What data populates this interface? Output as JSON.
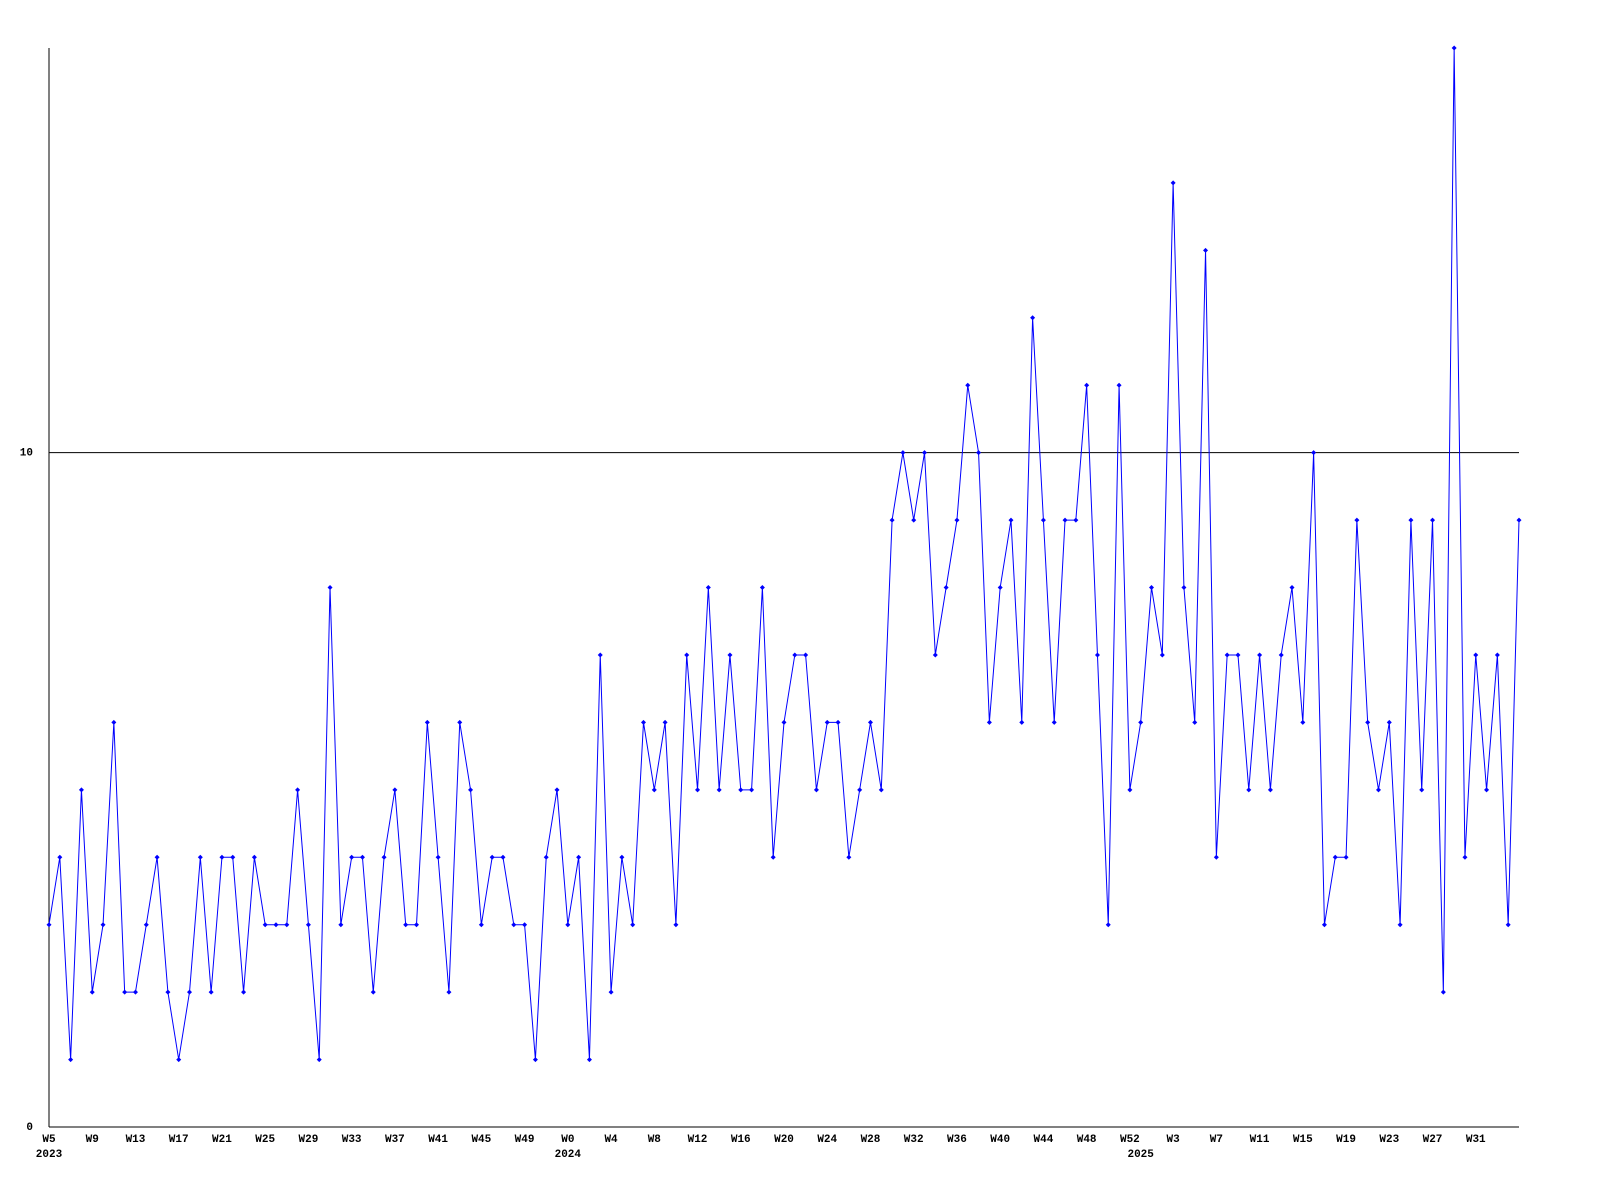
{
  "chart_data": {
    "type": "line",
    "color": "#0000ff",
    "axis_color": "#000000",
    "ylim": [
      0,
      16
    ],
    "yticks": [
      0,
      10
    ],
    "grid": true,
    "markers": true,
    "categories": [
      "W5",
      null,
      null,
      null,
      "W9",
      null,
      null,
      null,
      "W13",
      null,
      null,
      null,
      "W17",
      null,
      null,
      null,
      "W21",
      null,
      null,
      null,
      "W25",
      null,
      null,
      null,
      "W29",
      null,
      null,
      null,
      "W33",
      null,
      null,
      null,
      "W37",
      null,
      null,
      null,
      "W41",
      null,
      null,
      null,
      "W45",
      null,
      null,
      null,
      "W49",
      null,
      null,
      null,
      "W0",
      null,
      null,
      null,
      "W4",
      null,
      null,
      null,
      "W8",
      null,
      null,
      null,
      "W12",
      null,
      null,
      null,
      "W16",
      null,
      null,
      null,
      "W20",
      null,
      null,
      null,
      "W24",
      null,
      null,
      null,
      "W28",
      null,
      null,
      null,
      "W32",
      null,
      null,
      null,
      "W36",
      null,
      null,
      null,
      "W40",
      null,
      null,
      null,
      "W44",
      null,
      null,
      null,
      "W48",
      null,
      null,
      null,
      "W52",
      null,
      null,
      null,
      "W3",
      null,
      null,
      null,
      "W7",
      null,
      null,
      null,
      "W11",
      null,
      null,
      null,
      "W15",
      null,
      null,
      null,
      "W19",
      null,
      null,
      null,
      "W23",
      null,
      null,
      null,
      "W27",
      null,
      null,
      null,
      "W31",
      null,
      null,
      null,
      null
    ],
    "year_labels": [
      "2023",
      null,
      null,
      null,
      null,
      null,
      null,
      null,
      null,
      null,
      null,
      null,
      null,
      null,
      null,
      null,
      null,
      null,
      null,
      null,
      null,
      null,
      null,
      null,
      null,
      null,
      null,
      null,
      null,
      null,
      null,
      null,
      null,
      null,
      null,
      null,
      null,
      null,
      null,
      null,
      null,
      null,
      null,
      null,
      null,
      null,
      null,
      null,
      "2024",
      null,
      null,
      null,
      null,
      null,
      null,
      null,
      null,
      null,
      null,
      null,
      null,
      null,
      null,
      null,
      null,
      null,
      null,
      null,
      null,
      null,
      null,
      null,
      null,
      null,
      null,
      null,
      null,
      null,
      null,
      null,
      null,
      null,
      null,
      null,
      null,
      null,
      null,
      null,
      null,
      null,
      null,
      null,
      null,
      null,
      null,
      null,
      null,
      null,
      null,
      null,
      null,
      "2025",
      null,
      null,
      null,
      null,
      null,
      null,
      null,
      null,
      null,
      null,
      null,
      null,
      null,
      null,
      null,
      null,
      null,
      null,
      null,
      null,
      null,
      null,
      null,
      null,
      null,
      null,
      null,
      null,
      null,
      null,
      null,
      null,
      null,
      null,
      null
    ],
    "values": [
      3,
      4,
      1,
      5,
      2,
      3,
      6,
      2,
      2,
      3,
      4,
      2,
      1,
      2,
      4,
      2,
      4,
      4,
      2,
      4,
      3,
      3,
      3,
      5,
      3,
      1,
      8,
      3,
      4,
      4,
      2,
      4,
      5,
      3,
      3,
      6,
      4,
      2,
      6,
      5,
      3,
      4,
      4,
      3,
      3,
      1,
      4,
      5,
      3,
      4,
      1,
      7,
      2,
      4,
      3,
      6,
      5,
      6,
      3,
      7,
      5,
      8,
      5,
      7,
      5,
      5,
      8,
      4,
      6,
      7,
      7,
      5,
      6,
      6,
      4,
      5,
      6,
      5,
      9,
      10,
      9,
      10,
      7,
      8,
      9,
      11,
      10,
      6,
      8,
      9,
      6,
      12,
      9,
      6,
      9,
      9,
      11,
      7,
      3,
      11,
      5,
      6,
      8,
      7,
      14,
      8,
      6,
      13,
      4,
      7,
      7,
      5,
      7,
      5,
      7,
      8,
      6,
      10,
      3,
      4,
      4,
      9,
      6,
      5,
      6,
      3,
      9,
      5,
      9,
      2,
      16,
      4,
      7,
      5,
      7,
      3,
      9
    ]
  }
}
